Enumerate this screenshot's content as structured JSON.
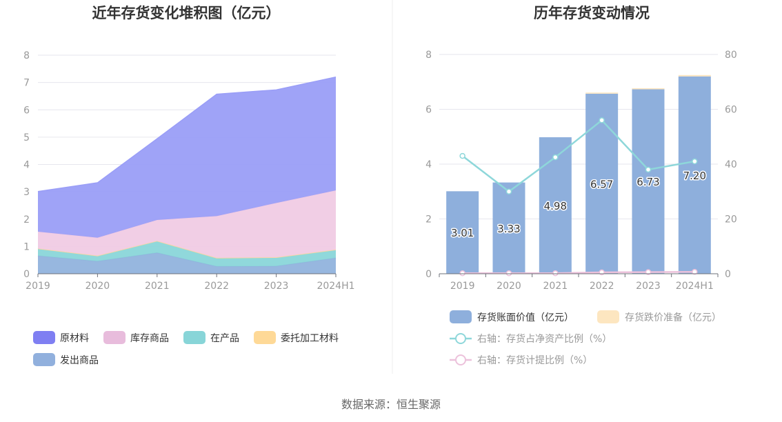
{
  "source_text": "数据来源：恒生聚源",
  "chart_data": [
    {
      "type": "area",
      "stacked": true,
      "title": "近年存货变化堆积图（亿元）",
      "categories": [
        "2019",
        "2020",
        "2021",
        "2022",
        "2023",
        "2024H1"
      ],
      "ylim": [
        0,
        8
      ],
      "yticks": [
        0,
        1,
        2,
        3,
        4,
        5,
        6,
        7,
        8
      ],
      "grid": true,
      "legend_position": "bottom-left",
      "series": [
        {
          "name": "发出商品",
          "color": "#91b3dd",
          "values": [
            0.66,
            0.46,
            0.77,
            0.27,
            0.28,
            0.58
          ]
        },
        {
          "name": "在产品",
          "color": "#8ad6d9",
          "values": [
            0.26,
            0.2,
            0.43,
            0.31,
            0.32,
            0.3
          ]
        },
        {
          "name": "委托加工材料",
          "color": "#fed997",
          "values": [
            0,
            0,
            0,
            0,
            0,
            0
          ]
        },
        {
          "name": "库存商品",
          "color": "#f0cbe4",
          "values": [
            0.62,
            0.66,
            0.77,
            1.53,
            1.99,
            2.17
          ]
        },
        {
          "name": "原材料",
          "color": "#9a9ef7",
          "values": [
            1.47,
            2.01,
            2.97,
            4.46,
            4.14,
            4.15
          ]
        }
      ],
      "legend_order": [
        "原材料",
        "库存商品",
        "在产品",
        "委托加工材料",
        "发出商品"
      ],
      "legend_colors": {
        "原材料": "#7f7ff2",
        "库存商品": "#e8bcdc",
        "在产品": "#88d5d8",
        "委托加工材料": "#fed997",
        "发出商品": "#91b0dd"
      }
    },
    {
      "type": "bar",
      "stacked": true,
      "title": "历年存货变动情况",
      "categories": [
        "2019",
        "2020",
        "2021",
        "2022",
        "2023",
        "2024H1"
      ],
      "ylim": [
        0,
        8
      ],
      "yticks": [
        0,
        2,
        4,
        6,
        8
      ],
      "y2lim": [
        0,
        80
      ],
      "y2ticks": [
        0,
        20,
        40,
        60,
        80
      ],
      "grid": true,
      "legend_position": "bottom",
      "bar_series": [
        {
          "name": "存货账面价值（亿元）",
          "color": "#8eafdc",
          "values": [
            3.01,
            3.33,
            4.98,
            6.57,
            6.73,
            7.2
          ],
          "labels": [
            "3.01",
            "3.33",
            "4.98",
            "6.57",
            "6.73",
            "7.20"
          ]
        },
        {
          "name": "存货跌价准备（亿元）",
          "color": "#fde6c0",
          "values": [
            0.0,
            0.0,
            0.0,
            0.04,
            0.04,
            0.05
          ]
        }
      ],
      "line_series": [
        {
          "name": "右轴：存货占净资产比例（%）",
          "color": "#8ed7da",
          "values": [
            43.0,
            30.0,
            42.5,
            56.0,
            38.0,
            41.0
          ]
        },
        {
          "name": "右轴：存货计提比例（%）",
          "color": "#ecc1db",
          "values": [
            0.2,
            0.2,
            0.2,
            0.5,
            0.6,
            0.7
          ]
        }
      ]
    }
  ]
}
